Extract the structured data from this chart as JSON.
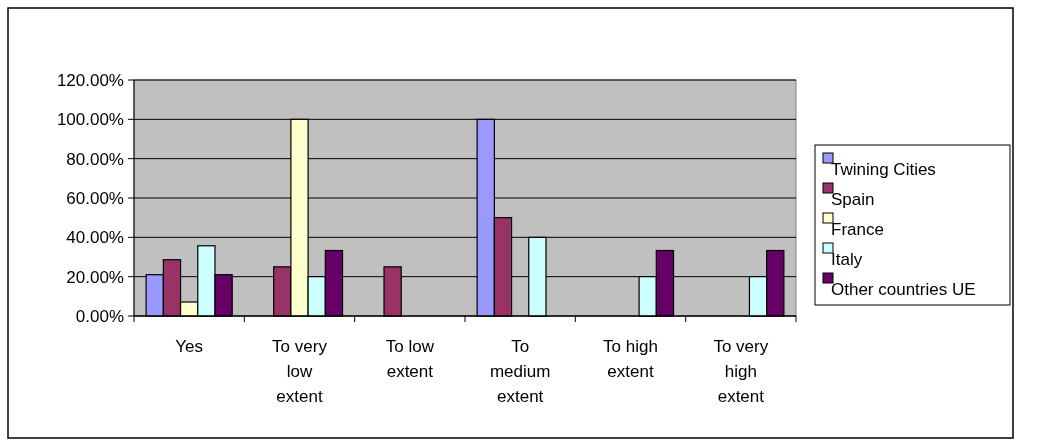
{
  "chart_data": {
    "type": "bar",
    "categories": [
      "Yes",
      "To very low extent",
      "To low extent",
      "To medium extent",
      "To high extent",
      "To very high extent"
    ],
    "series": [
      {
        "name": "Twining Cities",
        "color": "#9999ff",
        "values": [
          21,
          null,
          null,
          100,
          null,
          null
        ]
      },
      {
        "name": "Spain",
        "color": "#993366",
        "values": [
          28.6,
          25,
          25,
          50,
          null,
          null
        ]
      },
      {
        "name": "France",
        "color": "#ffffcc",
        "values": [
          7.1,
          100,
          null,
          null,
          null,
          null
        ]
      },
      {
        "name": "Italy",
        "color": "#ccffff",
        "values": [
          35.7,
          20,
          null,
          40,
          20,
          20
        ]
      },
      {
        "name": "Other countries UE",
        "color": "#660066",
        "values": [
          21,
          33.3,
          null,
          null,
          33.3,
          33.3
        ]
      }
    ],
    "ylim": [
      0,
      120
    ],
    "yticks": [
      {
        "value": 0,
        "label": "0.00%"
      },
      {
        "value": 20,
        "label": "20.00%"
      },
      {
        "value": 40,
        "label": "40.00%"
      },
      {
        "value": 60,
        "label": "60.00%"
      },
      {
        "value": 80,
        "label": "80.00%"
      },
      {
        "value": 100,
        "label": "100.00%"
      },
      {
        "value": 120,
        "label": "120.00%"
      }
    ],
    "grid": "y",
    "legend": "right"
  }
}
